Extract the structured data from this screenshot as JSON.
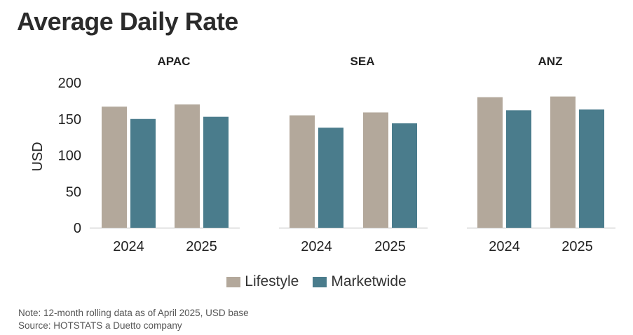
{
  "title": "Average Daily Rate",
  "colors": {
    "lifestyle": "#b3a89b",
    "marketwide": "#4a7c8c",
    "baseline": "#e2e2e2",
    "text": "#222222"
  },
  "chart_data": {
    "type": "bar",
    "ylabel": "USD",
    "ylim": [
      0,
      200
    ],
    "yticks": [
      0,
      50,
      100,
      150,
      200
    ],
    "grid": false,
    "legend_position": "bottom",
    "series_names": [
      "Lifestyle",
      "Marketwide"
    ],
    "panels": [
      {
        "title": "APAC",
        "categories": [
          "2024",
          "2025"
        ],
        "series": [
          {
            "name": "Lifestyle",
            "values": [
              167,
              170
            ]
          },
          {
            "name": "Marketwide",
            "values": [
              150,
              153
            ]
          }
        ]
      },
      {
        "title": "SEA",
        "categories": [
          "2024",
          "2025"
        ],
        "series": [
          {
            "name": "Lifestyle",
            "values": [
              155,
              159
            ]
          },
          {
            "name": "Marketwide",
            "values": [
              138,
              144
            ]
          }
        ]
      },
      {
        "title": "ANZ",
        "categories": [
          "2024",
          "2025"
        ],
        "series": [
          {
            "name": "Lifestyle",
            "values": [
              180,
              181
            ]
          },
          {
            "name": "Marketwide",
            "values": [
              162,
              163
            ]
          }
        ]
      }
    ]
  },
  "notes": {
    "note": "Note: 12-month rolling data as of April 2025, USD base",
    "source": "Source: HOTSTATS a Duetto company"
  }
}
